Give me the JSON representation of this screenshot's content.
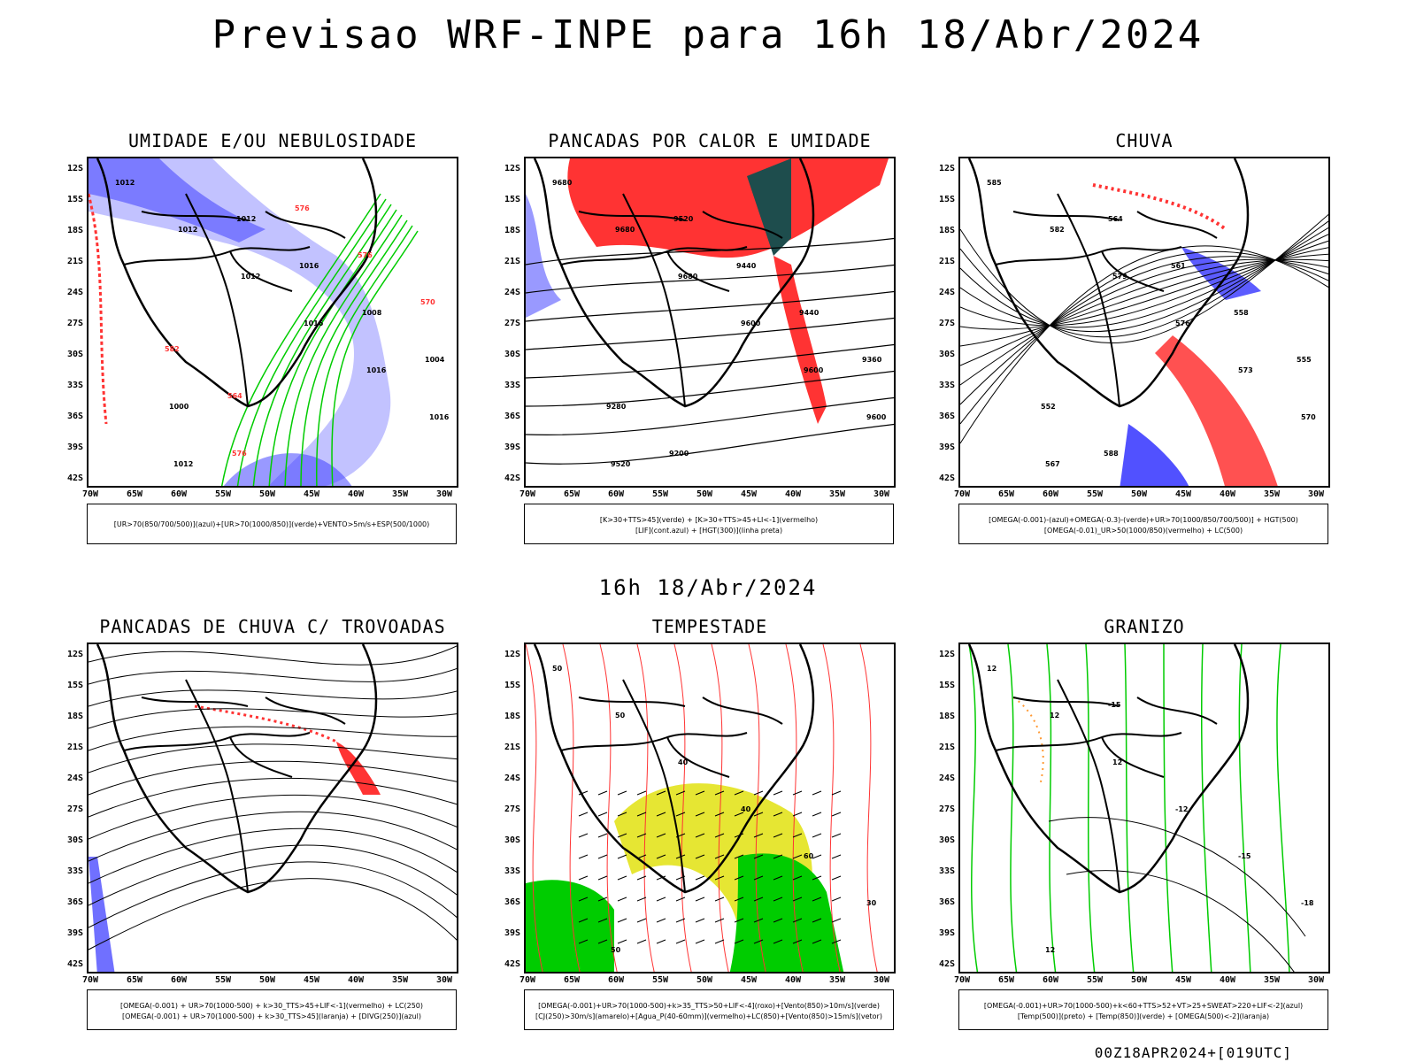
{
  "title": "Previsao WRF-INPE  para 16h 18/Abr/2024",
  "mid_date": "16h 18/Abr/2024",
  "footer": "00Z18APR2024+[019UTC]",
  "lat_labels": [
    "12S",
    "15S",
    "18S",
    "21S",
    "24S",
    "27S",
    "30S",
    "33S",
    "36S",
    "39S",
    "42S"
  ],
  "lon_labels": [
    "70W",
    "65W",
    "60W",
    "55W",
    "50W",
    "45W",
    "40W",
    "35W",
    "30W"
  ],
  "colors": {
    "blue": "#3333ff",
    "lightblue": "#9999ff",
    "green": "#00cc00",
    "red": "#ff3333",
    "darkteal": "#1e4d4d",
    "yellow": "#e6e633",
    "orange": "#ff9933"
  },
  "panels": [
    {
      "title": "UMIDADE E/OU NEBULOSIDADE",
      "legend": [
        "[UR>70(850/700/500)](azul)+[UR>70(1000/850)](verde)+VENTO>5m/s+ESP(500/1000)"
      ],
      "contour_labels": [
        "1012",
        "1012",
        "1012",
        "1016",
        "1016",
        "1016",
        "1012",
        "1012",
        "1016",
        "1008",
        "1004",
        "1000",
        "576",
        "576",
        "576",
        "570",
        "582",
        "564"
      ]
    },
    {
      "title": "PANCADAS POR CALOR E UMIDADE",
      "legend": [
        "[K>30+TTS>45](verde) + [K>30+TTS>45+LI<-1](vermelho)",
        "[LIF](cont.azul) + [HGT(300)](linha preta)"
      ],
      "contour_labels": [
        "9680",
        "9680",
        "9680",
        "9600",
        "9600",
        "9600",
        "9520",
        "9520",
        "9440",
        "9440",
        "9360",
        "9280",
        "9200"
      ]
    },
    {
      "title": "CHUVA",
      "legend": [
        "[OMEGA(-0.001)-(azul)+OMEGA(-0.3)-(verde)+UR>70(1000/850/700/500)] + HGT(500)",
        "[OMEGA(-0.01)_UR>50(1000/850)(vermelho) + LC(500)"
      ],
      "contour_labels": [
        "585",
        "582",
        "579",
        "576",
        "573",
        "570",
        "567",
        "564",
        "561",
        "558",
        "555",
        "552",
        "588"
      ]
    },
    {
      "title": "PANCADAS DE CHUVA C/ TROVOADAS",
      "legend": [
        "[OMEGA(-0.001) + UR>70(1000-500) + k>30_TTS>45+LIF<-1](vermelho) + LC(250)",
        "[OMEGA(-0.001) + UR>70(1000-500) + k>30_TTS>45](laranja) + [DIVG(250)](azul)"
      ],
      "contour_labels": []
    },
    {
      "title": "TEMPESTADE",
      "legend": [
        "[OMEGA(-0.001)+UR>70(1000-500)+k>35_TTS>50+LIF<-4](roxo)+[Vento(850)>10m/s](verde)",
        "[CJ(250)>30m/s](amarelo)+[Agua_P(40-60mm)](vermelho)+LC(850)+[Vento(850)>15m/s](vetor)"
      ],
      "contour_labels": [
        "50",
        "50",
        "40",
        "40",
        "60",
        "30",
        "50"
      ]
    },
    {
      "title": "GRANIZO",
      "legend": [
        "[OMEGA(-0.001)+UR>70(1000-500)+k<60+TTS>52+VT>25+SWEAT>220+LIF<-2](azul)",
        "[Temp(500)](preto) + [Temp(850)](verde) + [OMEGA(500)<-2](laranja)"
      ],
      "contour_labels": [
        "12",
        "12",
        "12",
        "-12",
        "-15",
        "-18",
        "12",
        "-15"
      ]
    }
  ]
}
